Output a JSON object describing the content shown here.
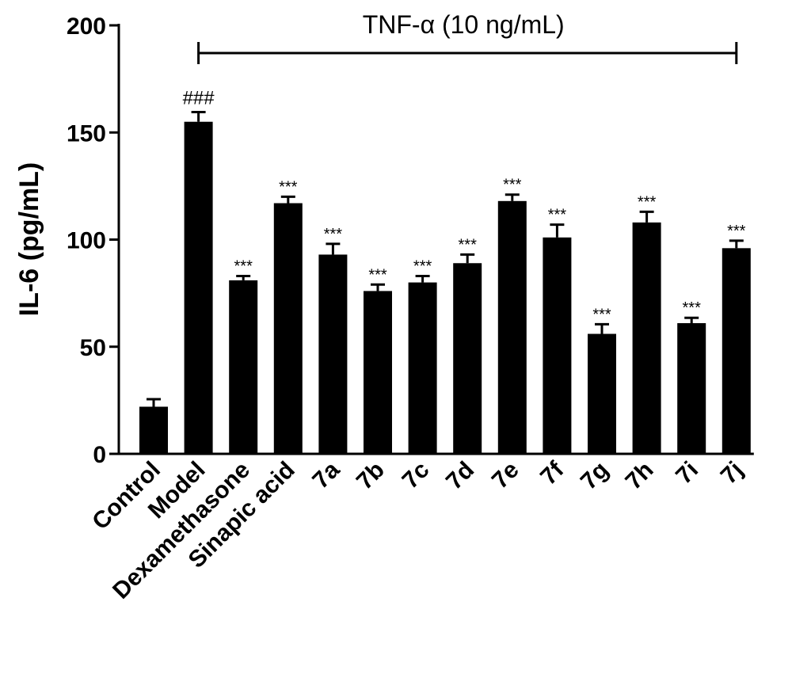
{
  "chart_data": {
    "type": "bar",
    "title": "",
    "xlabel": "",
    "ylabel": "IL-6 (pg/mL)",
    "ylim": [
      0,
      200
    ],
    "yticks": [
      0,
      50,
      100,
      150,
      200
    ],
    "ytick_labels": [
      "0",
      "50",
      "100",
      "150",
      "200"
    ],
    "grid": false,
    "bar_color": "#000000",
    "categories": [
      "Control",
      "Model",
      "Dexamethasone",
      "Sinapic acid",
      "7a",
      "7b",
      "7c",
      "7d",
      "7e",
      "7f",
      "7g",
      "7h",
      "7i",
      "7j"
    ],
    "values": [
      22,
      155,
      81,
      117,
      93,
      76,
      80,
      89,
      118,
      101,
      56,
      108,
      61,
      96
    ],
    "errors": [
      3.5,
      4.5,
      2,
      3,
      5,
      3,
      3,
      4,
      3,
      6,
      4.5,
      5,
      2.5,
      3.5
    ],
    "annotations": [
      "",
      "###",
      "***",
      "***",
      "***",
      "***",
      "***",
      "***",
      "***",
      "***",
      "***",
      "***",
      "***",
      "***"
    ],
    "bracket": {
      "label": "TNF-α (10 ng/mL)",
      "from_category": "Model",
      "to_category": "7j"
    }
  }
}
